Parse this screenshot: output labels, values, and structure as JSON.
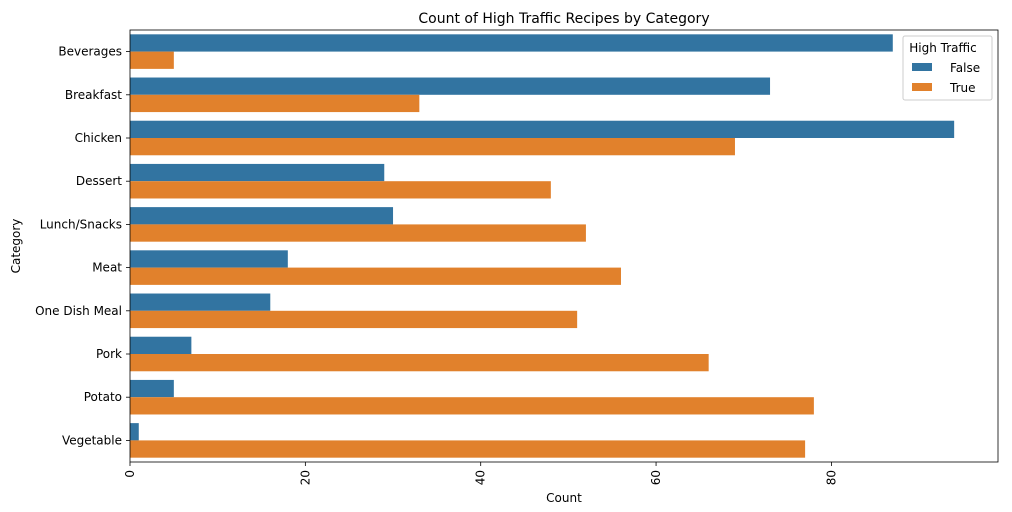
{
  "chart_data": {
    "type": "bar",
    "orientation": "horizontal",
    "title": "Count of High Traffic Recipes by Category",
    "xlabel": "Count",
    "ylabel": "Category",
    "categories": [
      "Beverages",
      "Breakfast",
      "Chicken",
      "Dessert",
      "Lunch/Snacks",
      "Meat",
      "One Dish Meal",
      "Pork",
      "Potato",
      "Vegetable"
    ],
    "series": [
      {
        "name": "False",
        "color": "#3274a1",
        "values": [
          87,
          73,
          94,
          29,
          30,
          18,
          16,
          7,
          5,
          1
        ]
      },
      {
        "name": "True",
        "color": "#e1812c",
        "values": [
          5,
          33,
          69,
          48,
          52,
          56,
          51,
          66,
          78,
          77
        ]
      }
    ],
    "xlim": [
      0,
      99
    ],
    "xticks": [
      0,
      20,
      40,
      60,
      80
    ],
    "xtick_labels": [
      "0",
      "20",
      "40",
      "60",
      "80"
    ],
    "grid": false,
    "legend": {
      "title": "High Traffic",
      "position": "top-right"
    }
  }
}
